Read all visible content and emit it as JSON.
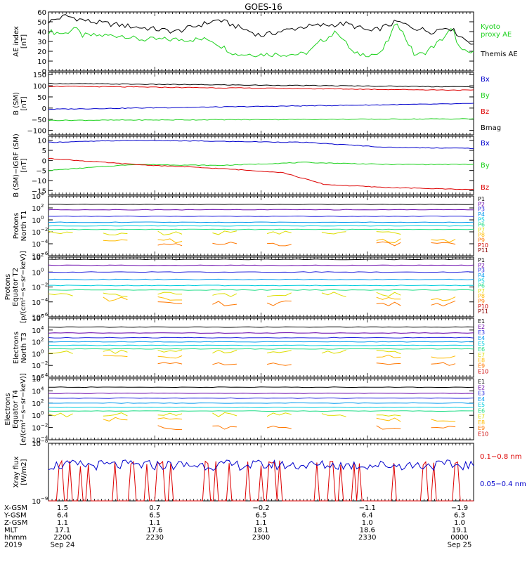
{
  "title": "GOES-16",
  "colors": {
    "black": "#000000",
    "green": "#1ed21e",
    "blue": "#0000cc",
    "red": "#dd0000",
    "P": [
      "#000000",
      "#6600aa",
      "#2222dd",
      "#0099ee",
      "#00ccdd",
      "#22dd88",
      "#dddd00",
      "#ffbb00",
      "#ff7700",
      "#cc0000",
      "#880000"
    ],
    "E": [
      "#000000",
      "#6600aa",
      "#2222dd",
      "#0099ee",
      "#00ccdd",
      "#22dd88",
      "#dddd00",
      "#ffbb00",
      "#ff7700",
      "#cc0000",
      "#880000"
    ]
  },
  "chart_data": [
    {
      "type": "line",
      "ylabel": [
        "AE index",
        "[nT]"
      ],
      "ylim": [
        0,
        60
      ],
      "yticks": [
        "0",
        "10",
        "20",
        "30",
        "40",
        "50",
        "60"
      ],
      "series": [
        {
          "name": "Kyoto proxy AE",
          "name_lines": [
            "Kyoto",
            "proxy AE"
          ],
          "color": "green",
          "x": [
            0,
            0.04,
            0.06,
            0.08,
            0.18,
            0.2,
            0.22,
            0.38,
            0.44,
            0.52,
            0.6,
            0.62,
            0.64,
            0.68,
            0.7,
            0.72,
            0.78,
            0.8,
            0.82,
            0.86,
            0.88,
            0.92,
            0.95,
            0.97,
            1.0
          ],
          "y": [
            40,
            38,
            44,
            36,
            36,
            33,
            32,
            32,
            17,
            17,
            17,
            22,
            30,
            40,
            28,
            17,
            17,
            32,
            50,
            17,
            17,
            30,
            43,
            20,
            18
          ]
        },
        {
          "name": "Themis AE",
          "name_lines": [
            "Themis AE"
          ],
          "color": "black",
          "x": [
            0,
            0.04,
            0.1,
            0.2,
            0.3,
            0.4,
            0.5,
            0.6,
            0.7,
            0.76,
            0.82,
            0.86,
            0.9,
            0.94,
            0.98,
            1.0
          ],
          "y": [
            50,
            56,
            50,
            45,
            40,
            52,
            36,
            45,
            48,
            40,
            50,
            44,
            40,
            45,
            32,
            28
          ]
        }
      ]
    },
    {
      "type": "line",
      "ylabel": [
        "B (SM)",
        "[nT]"
      ],
      "ylim": [
        -120,
        160
      ],
      "yticks": [
        "−100",
        "−50",
        "0",
        "50",
        "100",
        "150"
      ],
      "yticks_v": [
        -100,
        -50,
        0,
        50,
        100,
        150
      ],
      "series": [
        {
          "name": "Bx",
          "color": "blue",
          "x": [
            0,
            1
          ],
          "y": [
            -5,
            20
          ]
        },
        {
          "name": "By",
          "color": "green",
          "x": [
            0,
            1
          ],
          "y": [
            -55,
            -48
          ]
        },
        {
          "name": "Bz",
          "color": "red",
          "x": [
            0,
            1
          ],
          "y": [
            98,
            80
          ]
        },
        {
          "name": "Bmag",
          "color": "black",
          "x": [
            0,
            1
          ],
          "y": [
            110,
            95
          ]
        }
      ]
    },
    {
      "type": "line",
      "ylabel": [
        "B (SM)−IGRF (SM)",
        "[nT]"
      ],
      "ylim": [
        -17,
        12
      ],
      "yticks": [
        "−15",
        "−10",
        "−5",
        "0",
        "5",
        "10"
      ],
      "yticks_v": [
        -15,
        -10,
        -5,
        0,
        5,
        10
      ],
      "series": [
        {
          "name": "Bx",
          "color": "blue",
          "x": [
            0,
            0.2,
            0.4,
            0.6,
            0.8,
            1.0
          ],
          "y": [
            9,
            10,
            9.5,
            9,
            6.5,
            6
          ]
        },
        {
          "name": "By",
          "color": "green",
          "x": [
            0,
            0.2,
            0.4,
            0.6,
            0.8,
            1.0
          ],
          "y": [
            -5,
            -2,
            -2.5,
            -1,
            -2,
            -2
          ]
        },
        {
          "name": "Bz",
          "color": "red",
          "x": [
            0,
            0.2,
            0.4,
            0.55,
            0.65,
            0.8,
            1.0
          ],
          "y": [
            1,
            -2,
            -4,
            -6,
            -12,
            -13.5,
            -14.5
          ]
        }
      ]
    },
    {
      "type": "line",
      "log": true,
      "ylabel": [
        "Protons",
        "North T1"
      ],
      "ylim_exp": [
        -6,
        4
      ],
      "ytick_exps": [
        4,
        2,
        0,
        -2,
        -4,
        -6
      ],
      "channels": [
        "P1",
        "P2",
        "P3",
        "P4",
        "P5",
        "P6",
        "P7",
        "P8",
        "P9",
        "P10",
        "P11"
      ],
      "levels_exp": [
        2.6,
        1.7,
        0.6,
        -0.4,
        -1.0,
        -1.6,
        -2.2,
        -3.5,
        -4.0
      ],
      "color_key": "P"
    },
    {
      "type": "line",
      "log": true,
      "ylabel": [
        "Protons",
        "Equator T2",
        "[p/(cm²−s−sr−keV)]"
      ],
      "ylim_exp": [
        -6,
        2
      ],
      "ytick_exps": [
        2,
        0,
        -2,
        -4,
        -6
      ],
      "channels": [
        "P1",
        "P2",
        "P3",
        "P4",
        "P5",
        "P6",
        "P7",
        "P8",
        "P9",
        "P10",
        "P11"
      ],
      "levels_exp": [
        1.7,
        0.9,
        0.0,
        -1.0,
        -1.8,
        -2.4,
        -3.0,
        -3.6,
        -4.2
      ],
      "color_key": "P"
    },
    {
      "type": "line",
      "log": true,
      "ylabel": [
        "Electrons",
        "North T3"
      ],
      "ylim_exp": [
        -4,
        6
      ],
      "ytick_exps": [
        6,
        4,
        2,
        0,
        -2,
        -4
      ],
      "channels": [
        "E1",
        "E2",
        "E3",
        "E4",
        "E5",
        "E6",
        "E7",
        "E8",
        "E9",
        "E10"
      ],
      "levels_exp": [
        4.5,
        3.5,
        2.7,
        2.0,
        1.4,
        0.8,
        0.3,
        -0.5,
        -1.8
      ],
      "color_key": "E"
    },
    {
      "type": "line",
      "log": true,
      "ylabel": [
        "Electrons",
        "Equator T4",
        "[e/(cm²−s−sr−keV)]"
      ],
      "ylim_exp": [
        -4,
        6
      ],
      "ytick_exps": [
        6,
        4,
        2,
        0,
        -2,
        -4
      ],
      "channels": [
        "E1",
        "E2",
        "E3",
        "E4",
        "E5",
        "E6",
        "E7",
        "E8",
        "E9",
        "E10"
      ],
      "levels_exp": [
        4.6,
        3.6,
        2.8,
        2.0,
        1.3,
        0.7,
        0.1,
        -0.7,
        -2.0
      ],
      "color_key": "E"
    },
    {
      "type": "line",
      "log": true,
      "ylabel": [
        "Xray flux",
        "[W/m2]"
      ],
      "ylim_exp": [
        -9,
        -8
      ],
      "ytick_exps": [
        -8,
        -9
      ],
      "series": [
        {
          "name": "0.1−0.8 nm",
          "color": "red",
          "level": -8.85
        },
        {
          "name": "0.05−0.4 nm",
          "color": "blue",
          "level": -8.38
        }
      ]
    }
  ],
  "orbit_table": {
    "row_labels": [
      "X-GSM",
      "Y-GSM",
      "Z-GSM",
      "MLT",
      "hhmm",
      "2019"
    ],
    "columns": [
      {
        "values": [
          "1.5",
          "6.4",
          "1.1",
          "17.1",
          "2200",
          "Sep 24"
        ]
      },
      {
        "values": [
          "0.7",
          "6.5",
          "1.1",
          "17.6",
          "2230",
          ""
        ]
      },
      {
        "values": [
          "−0.2",
          "6.5",
          "1.1",
          "18.1",
          "2300",
          ""
        ]
      },
      {
        "values": [
          "−1.1",
          "6.4",
          "1.0",
          "18.6",
          "2330",
          ""
        ]
      },
      {
        "values": [
          "−1.9",
          "6.3",
          "1.0",
          "19.1",
          "0000",
          "Sep 25"
        ]
      }
    ]
  }
}
